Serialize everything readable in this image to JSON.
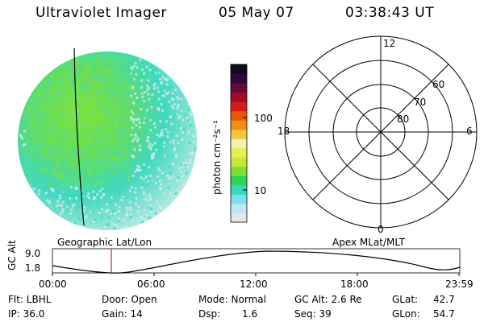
{
  "header": {
    "instrument": "Ultraviolet Imager",
    "date": "05 May 07",
    "time": "03:38:43 UT"
  },
  "image_panel": {
    "caption": "Geographic Lat/Lon",
    "colors": {
      "dense": "#7ee23a",
      "mid": "#3fd9c0",
      "sparse": "#cfeee9",
      "edge": "#e4e4e4"
    }
  },
  "colorbar": {
    "unit_label": "photon cm⁻²s⁻¹",
    "ticks": [
      {
        "label": "100",
        "value": 100
      },
      {
        "label": "10",
        "value": 10
      }
    ],
    "colors": [
      "#e6e6e6",
      "#bfe8ee",
      "#79e0f0",
      "#39d9b8",
      "#2ed35a",
      "#7be12f",
      "#c8e63a",
      "#e7ef4a",
      "#f2f0b2",
      "#f7c43a",
      "#f28d12",
      "#e9530a",
      "#d61a1a",
      "#a30b26",
      "#66083d",
      "#2c0a36",
      "#120a1c"
    ]
  },
  "polar_plot": {
    "caption": "Apex MLat/MLT",
    "mlt_labels": {
      "top": "12",
      "bottom": "0",
      "left": "18",
      "right": "6"
    },
    "lat_labels": [
      "60",
      "70",
      "80"
    ]
  },
  "orbit": {
    "axis_label": "GC Alt",
    "y_ticks": [
      "9.0",
      "1.8"
    ],
    "x_ticks": [
      "00:00",
      "06:00",
      "12:00",
      "18:00",
      "23:59"
    ],
    "marker_color": "#cc2222"
  },
  "info": {
    "flt": "Flt: LBHL",
    "ip": "IP: 36.0",
    "door": "Door: Open",
    "gain": "Gain: 14",
    "mode": "Mode: Normal",
    "dsp_label": "Dsp:",
    "dsp_value": "1.6",
    "gcalt": "GC Alt: 2.6 Re",
    "seq": "Seq: 39",
    "glat_label": "GLat:",
    "glat_value": "42.7",
    "glon_label": "GLon:",
    "glon_value": "54.7"
  }
}
